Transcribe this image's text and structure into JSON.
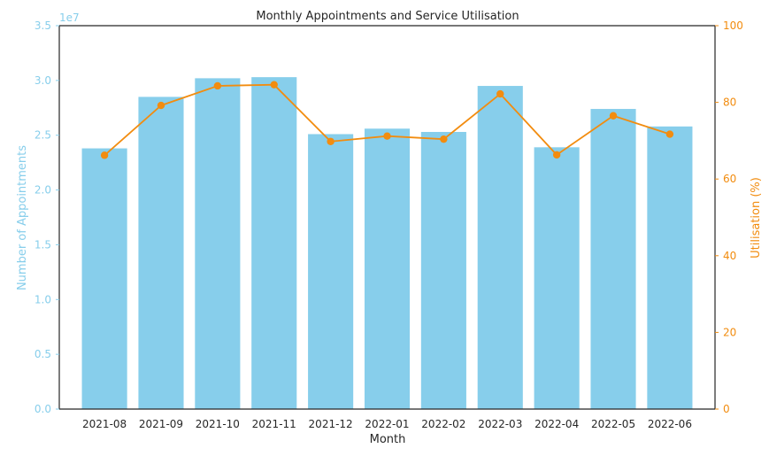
{
  "chart_data": {
    "type": "bar",
    "title": "Monthly Appointments and Service Utilisation",
    "xlabel": "Month",
    "categories": [
      "2021-08",
      "2021-09",
      "2021-10",
      "2021-11",
      "2021-12",
      "2022-01",
      "2022-02",
      "2022-03",
      "2022-04",
      "2022-05",
      "2022-06"
    ],
    "series": [
      {
        "type": "bar",
        "axis": "left",
        "values": [
          23800000,
          28500000,
          30200000,
          30300000,
          25100000,
          25600000,
          25300000,
          29500000,
          23900000,
          27400000,
          25800000
        ]
      },
      {
        "type": "line",
        "axis": "right",
        "values": [
          66.2,
          79.2,
          84.3,
          84.6,
          69.8,
          71.2,
          70.4,
          82.2,
          66.3,
          76.5,
          71.7
        ]
      }
    ],
    "y_left": {
      "label": "Number of Appointments",
      "offset_text": "1e7",
      "ylim": [
        0,
        35000000
      ],
      "ticks": [
        0,
        5000000,
        10000000,
        15000000,
        20000000,
        25000000,
        30000000,
        35000000
      ],
      "tick_labels": [
        "0.0",
        "0.5",
        "1.0",
        "1.5",
        "2.0",
        "2.5",
        "3.0",
        "3.5"
      ],
      "color": "#87CEEB"
    },
    "y_right": {
      "label": "Utilisation (%)",
      "ylim": [
        0,
        100
      ],
      "ticks": [
        0,
        20,
        40,
        60,
        80,
        100
      ],
      "tick_labels": [
        "0",
        "20",
        "40",
        "60",
        "80",
        "100"
      ],
      "color": "#F28C0F"
    },
    "grid": false,
    "legend": "none"
  }
}
